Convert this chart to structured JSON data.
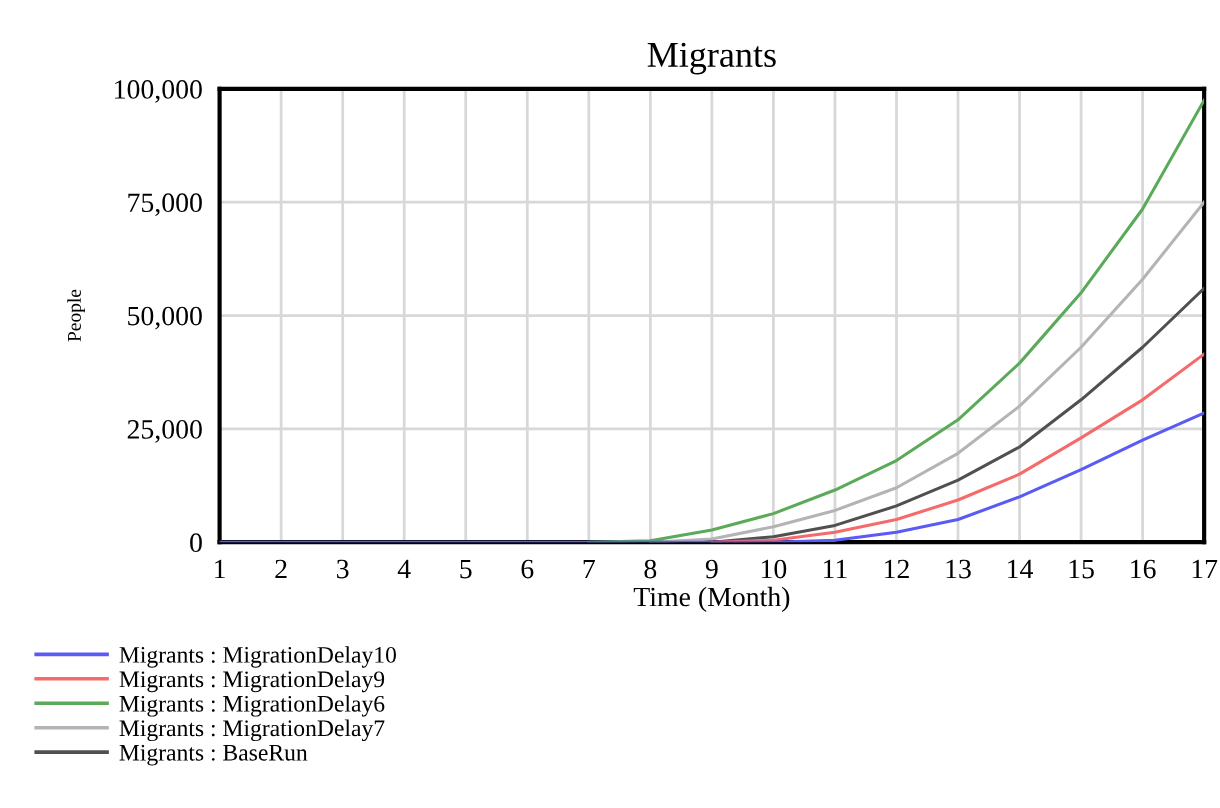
{
  "chart_data": {
    "type": "line",
    "title": "Migrants",
    "xlabel": "Time (Month)",
    "ylabel": "People",
    "x": [
      1,
      2,
      3,
      4,
      5,
      6,
      7,
      8,
      9,
      10,
      11,
      12,
      13,
      14,
      15,
      16,
      17
    ],
    "series": [
      {
        "name": "Migrants : MigrationDelay10",
        "color": "#5a5af5",
        "values": [
          0,
          0,
          0,
          0,
          0,
          0,
          0,
          0,
          0,
          0,
          400,
          2200,
          5000,
          10000,
          16000,
          22500,
          28500
        ]
      },
      {
        "name": "Migrants : MigrationDelay9",
        "color": "#f56a6a",
        "values": [
          null,
          null,
          null,
          null,
          null,
          null,
          null,
          null,
          0,
          400,
          2200,
          5000,
          9300,
          15000,
          23000,
          31400,
          41500
        ]
      },
      {
        "name": "Migrants : MigrationDelay6",
        "color": "#5aaa5a",
        "values": [
          null,
          null,
          null,
          null,
          null,
          null,
          0,
          300,
          2700,
          6300,
          11500,
          18000,
          27000,
          39500,
          55000,
          73500,
          97500
        ]
      },
      {
        "name": "Migrants : MigrationDelay7",
        "color": "#b4b4b4",
        "values": [
          null,
          null,
          null,
          null,
          null,
          null,
          null,
          0,
          700,
          3400,
          7000,
          12000,
          19600,
          30000,
          43000,
          58000,
          75000
        ]
      },
      {
        "name": "Migrants : BaseRun",
        "color": "#505050",
        "values": [
          null,
          null,
          null,
          null,
          null,
          null,
          null,
          null,
          0,
          1200,
          3700,
          8000,
          13700,
          21000,
          31400,
          43000,
          56000
        ]
      }
    ],
    "xlim": [
      1,
      17
    ],
    "xticks": [
      1,
      2,
      3,
      4,
      5,
      6,
      7,
      8,
      9,
      10,
      11,
      12,
      13,
      14,
      15,
      16,
      17
    ],
    "ylim": [
      0,
      100000
    ],
    "yticks": [
      {
        "value": 0,
        "label": "0"
      },
      {
        "value": 25000,
        "label": "25,000"
      },
      {
        "value": 50000,
        "label": "50,000"
      },
      {
        "value": 75000,
        "label": "75,000"
      },
      {
        "value": 100000,
        "label": "100,000"
      }
    ],
    "grid": true,
    "legend": "bottom",
    "marker": "none",
    "line_style": "solid"
  }
}
